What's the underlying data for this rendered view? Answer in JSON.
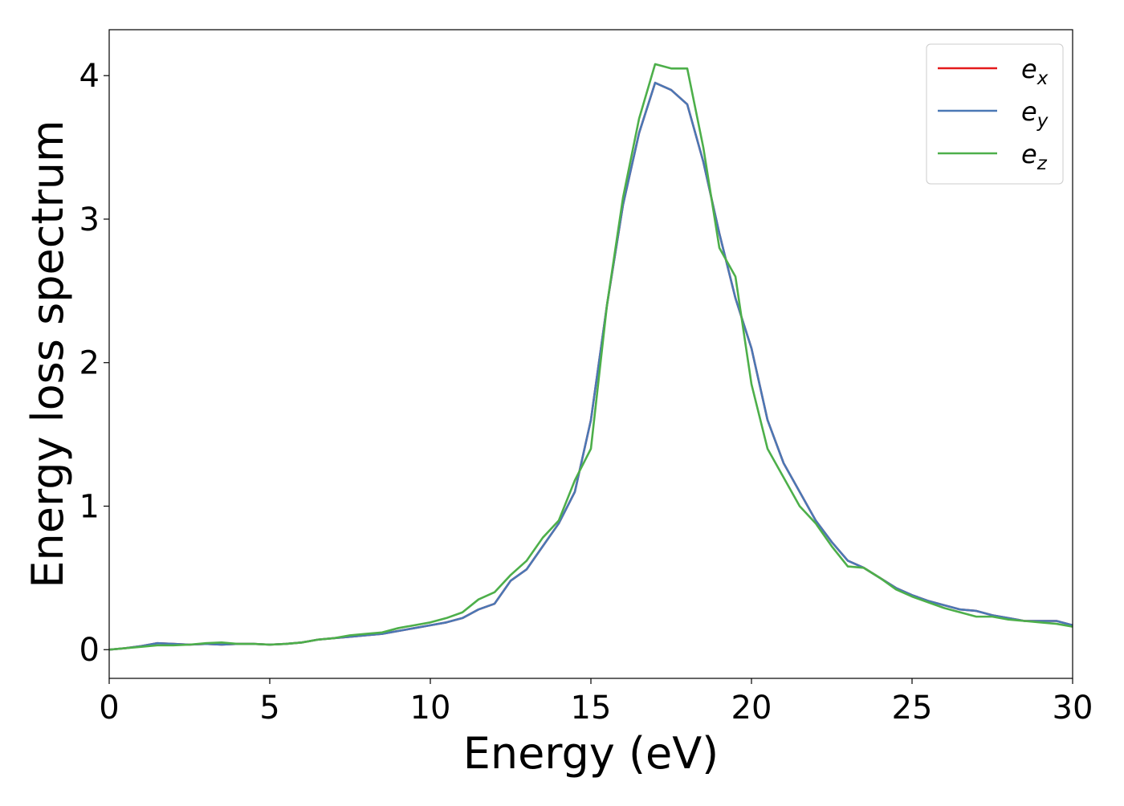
{
  "chart_data": {
    "type": "line",
    "xlabel": "Energy (eV)",
    "ylabel": "Energy loss spectrum",
    "x": [
      0,
      0.5,
      1,
      1.5,
      2,
      2.5,
      3,
      3.5,
      4,
      4.5,
      5,
      5.5,
      6,
      6.5,
      7,
      7.5,
      8,
      8.5,
      9,
      9.5,
      10,
      10.5,
      11,
      11.5,
      12,
      12.5,
      13,
      13.5,
      14,
      14.5,
      15,
      15.5,
      16,
      16.5,
      17,
      17.5,
      18,
      18.5,
      19,
      19.5,
      20,
      20.5,
      21,
      21.5,
      22,
      22.5,
      23,
      23.5,
      24,
      24.5,
      25,
      25.5,
      26,
      26.5,
      27,
      27.5,
      28,
      28.5,
      29,
      29.5,
      30
    ],
    "series": [
      {
        "name": "e_x",
        "color": "#e41a1c",
        "values": [
          0,
          0.01,
          0.025,
          0.045,
          0.04,
          0.035,
          0.04,
          0.035,
          0.04,
          0.04,
          0.035,
          0.04,
          0.05,
          0.07,
          0.08,
          0.09,
          0.1,
          0.11,
          0.13,
          0.15,
          0.17,
          0.19,
          0.22,
          0.28,
          0.32,
          0.48,
          0.56,
          0.72,
          0.88,
          1.1,
          1.6,
          2.4,
          3.1,
          3.6,
          3.95,
          3.9,
          3.8,
          3.4,
          2.9,
          2.45,
          2.1,
          1.6,
          1.3,
          1.1,
          0.9,
          0.75,
          0.62,
          0.57,
          0.5,
          0.43,
          0.38,
          0.34,
          0.31,
          0.28,
          0.27,
          0.24,
          0.22,
          0.2,
          0.2,
          0.2,
          0.17
        ]
      },
      {
        "name": "e_y",
        "color": "#4a78b5",
        "values": [
          0,
          0.01,
          0.025,
          0.045,
          0.04,
          0.035,
          0.04,
          0.035,
          0.04,
          0.04,
          0.035,
          0.04,
          0.05,
          0.07,
          0.08,
          0.09,
          0.1,
          0.11,
          0.13,
          0.15,
          0.17,
          0.19,
          0.22,
          0.28,
          0.32,
          0.48,
          0.56,
          0.72,
          0.88,
          1.1,
          1.6,
          2.4,
          3.1,
          3.6,
          3.95,
          3.9,
          3.8,
          3.4,
          2.9,
          2.45,
          2.1,
          1.6,
          1.3,
          1.1,
          0.9,
          0.75,
          0.62,
          0.57,
          0.5,
          0.43,
          0.38,
          0.34,
          0.31,
          0.28,
          0.27,
          0.24,
          0.22,
          0.2,
          0.2,
          0.2,
          0.17
        ]
      },
      {
        "name": "e_z",
        "color": "#4daf4a",
        "values": [
          0,
          0.01,
          0.02,
          0.03,
          0.03,
          0.035,
          0.045,
          0.05,
          0.04,
          0.04,
          0.035,
          0.04,
          0.05,
          0.07,
          0.08,
          0.1,
          0.11,
          0.12,
          0.15,
          0.17,
          0.19,
          0.22,
          0.26,
          0.35,
          0.4,
          0.52,
          0.62,
          0.78,
          0.9,
          1.18,
          1.4,
          2.4,
          3.15,
          3.7,
          4.08,
          4.05,
          4.05,
          3.5,
          2.8,
          2.6,
          1.85,
          1.4,
          1.2,
          1.0,
          0.88,
          0.72,
          0.58,
          0.57,
          0.5,
          0.42,
          0.37,
          0.33,
          0.29,
          0.26,
          0.23,
          0.23,
          0.21,
          0.2,
          0.19,
          0.18,
          0.16
        ]
      }
    ],
    "xlim": [
      0,
      30
    ],
    "xticks": [
      0,
      5,
      10,
      15,
      20,
      25,
      30
    ],
    "ylim": [
      -0.2,
      4.32
    ],
    "yticks": [
      0,
      1,
      2,
      3,
      4
    ],
    "legend": "upper right"
  }
}
